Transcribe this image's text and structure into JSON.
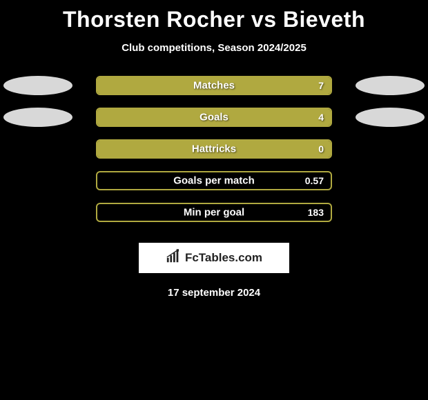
{
  "title": "Thorsten Rocher vs Bieveth",
  "subtitle": "Club competitions, Season 2024/2025",
  "background_color": "#000000",
  "bar_border_color": "#b0a940",
  "bar_fill_color": "#b0a940",
  "ellipse_color": "#d8d8d8",
  "text_color": "#ffffff",
  "stats": [
    {
      "label": "Matches",
      "value": "7",
      "fill_pct": 100,
      "show_left_ellipse": true,
      "show_right_ellipse": true
    },
    {
      "label": "Goals",
      "value": "4",
      "fill_pct": 100,
      "show_left_ellipse": true,
      "show_right_ellipse": true
    },
    {
      "label": "Hattricks",
      "value": "0",
      "fill_pct": 100,
      "show_left_ellipse": false,
      "show_right_ellipse": false
    },
    {
      "label": "Goals per match",
      "value": "0.57",
      "fill_pct": 0,
      "show_left_ellipse": false,
      "show_right_ellipse": false
    },
    {
      "label": "Min per goal",
      "value": "183",
      "fill_pct": 0,
      "show_left_ellipse": false,
      "show_right_ellipse": false
    }
  ],
  "branding": {
    "text": "FcTables.com",
    "icon_name": "barchart-icon"
  },
  "date": "17 september 2024"
}
